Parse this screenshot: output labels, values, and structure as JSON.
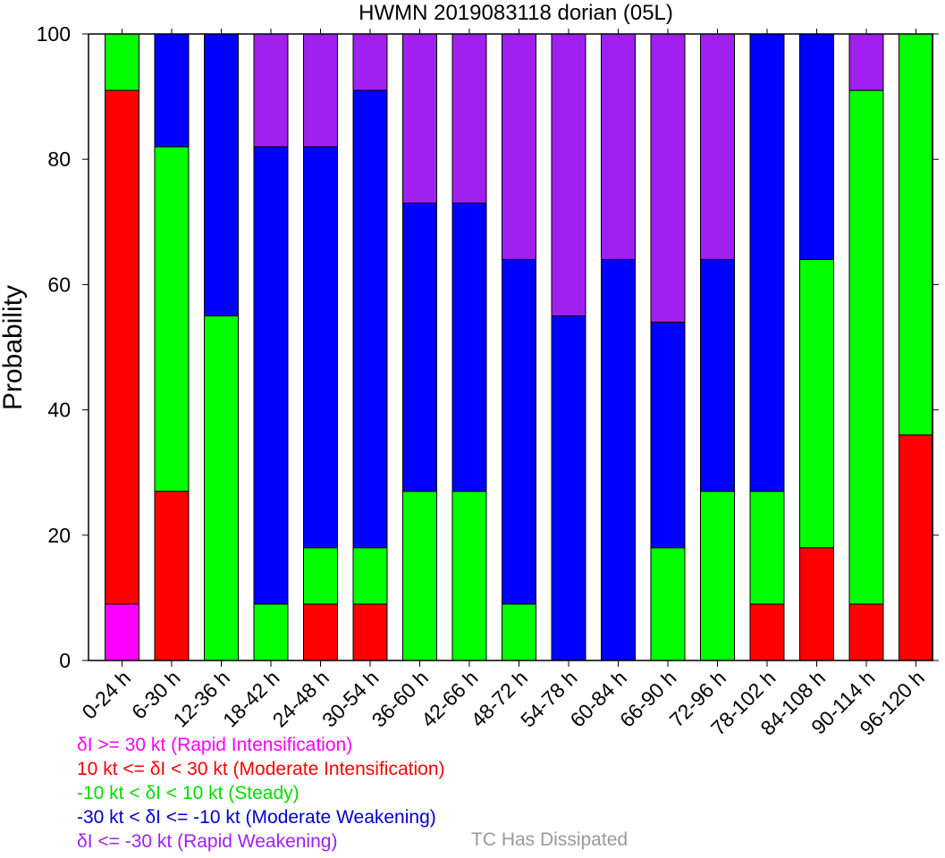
{
  "chart_data": {
    "type": "bar",
    "stacked": true,
    "title": "HWMN 2019083118 dorian (05L)",
    "xlabel": "",
    "ylabel": "Probability",
    "ylim": [
      0,
      100
    ],
    "yticks": [
      0,
      20,
      40,
      60,
      80,
      100
    ],
    "grid": false,
    "categories": [
      "0-24 h",
      "6-30 h",
      "12-36 h",
      "18-42 h",
      "24-48 h",
      "30-54 h",
      "36-60 h",
      "42-66 h",
      "48-72 h",
      "54-78 h",
      "60-84 h",
      "66-90 h",
      "72-96 h",
      "78-102 h",
      "84-108 h",
      "90-114 h",
      "96-120 h"
    ],
    "series": [
      {
        "key": "ri",
        "color": "#ff00ff",
        "values": [
          9,
          0,
          0,
          0,
          0,
          0,
          0,
          0,
          0,
          0,
          0,
          0,
          0,
          0,
          0,
          0,
          0
        ]
      },
      {
        "key": "mi",
        "color": "#ff0000",
        "values": [
          82,
          27,
          0,
          0,
          9,
          9,
          0,
          0,
          0,
          0,
          0,
          0,
          0,
          9,
          18,
          9,
          36
        ]
      },
      {
        "key": "st",
        "color": "#00ff00",
        "values": [
          9,
          55,
          55,
          9,
          9,
          9,
          27,
          27,
          9,
          0,
          0,
          18,
          27,
          18,
          46,
          82,
          64
        ]
      },
      {
        "key": "mw",
        "color": "#0000ff",
        "values": [
          0,
          18,
          45,
          73,
          64,
          73,
          46,
          46,
          55,
          55,
          64,
          36,
          37,
          73,
          36,
          0,
          0
        ]
      },
      {
        "key": "rw",
        "color": "#a020f0",
        "values": [
          0,
          0,
          0,
          18,
          18,
          9,
          27,
          27,
          36,
          45,
          36,
          46,
          36,
          0,
          0,
          9,
          0
        ]
      }
    ]
  },
  "legend": {
    "items": [
      {
        "label": "δI >= 30 kt (Rapid Intensification)",
        "color": "#ff00ff"
      },
      {
        "label": "10 kt <= δI < 30 kt (Moderate Intensification)",
        "color": "#ff0000"
      },
      {
        "label": "-10 kt < δI < 10 kt (Steady)",
        "color": "#00dd00"
      },
      {
        "label": "-30 kt < δI <= -10 kt (Moderate Weakening)",
        "color": "#0000cc"
      },
      {
        "label": "δI <= -30 kt (Rapid Weakening)",
        "color": "#a020f0"
      }
    ],
    "dissipated_label": "TC Has Dissipated",
    "dissipated_color": "#999999"
  }
}
